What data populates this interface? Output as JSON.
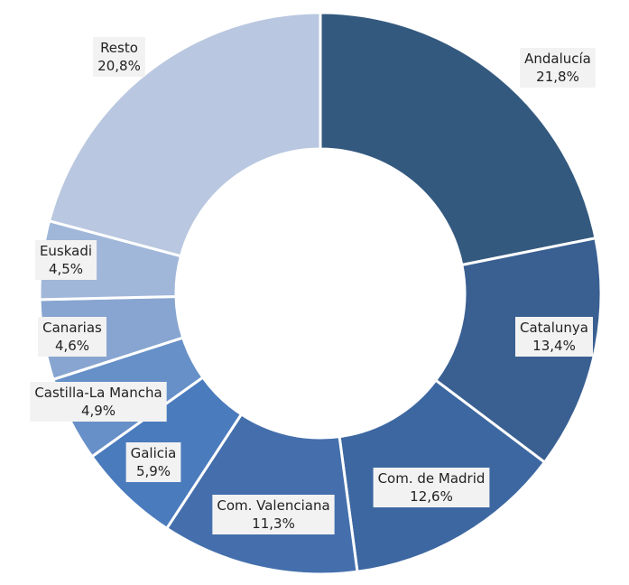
{
  "chart_data": {
    "type": "pie",
    "variant": "donut",
    "title": "",
    "legend": "none",
    "slices": [
      {
        "name": "Andalucía",
        "value": 21.8,
        "label": "21,8%",
        "color": "#34597f"
      },
      {
        "name": "Catalunya",
        "value": 13.4,
        "label": "13,4%",
        "color": "#3a6092"
      },
      {
        "name": "Com. de Madrid",
        "value": 12.6,
        "label": "12,6%",
        "color": "#3d67a1"
      },
      {
        "name": "Com. Valenciana",
        "value": 11.3,
        "label": "11,3%",
        "color": "#446fac"
      },
      {
        "name": "Galicia",
        "value": 5.9,
        "label": "5,9%",
        "color": "#4a7bbd"
      },
      {
        "name": "Castilla-La Mancha",
        "value": 4.9,
        "label": "4,9%",
        "color": "#6790c8"
      },
      {
        "name": "Canarias",
        "value": 4.6,
        "label": "4,6%",
        "color": "#87a5d0"
      },
      {
        "name": "Euskadi",
        "value": 4.5,
        "label": "4,5%",
        "color": "#a1b7da"
      },
      {
        "name": "Resto",
        "value": 20.8,
        "label": "20,8%",
        "color": "#b9c7e0"
      }
    ]
  }
}
